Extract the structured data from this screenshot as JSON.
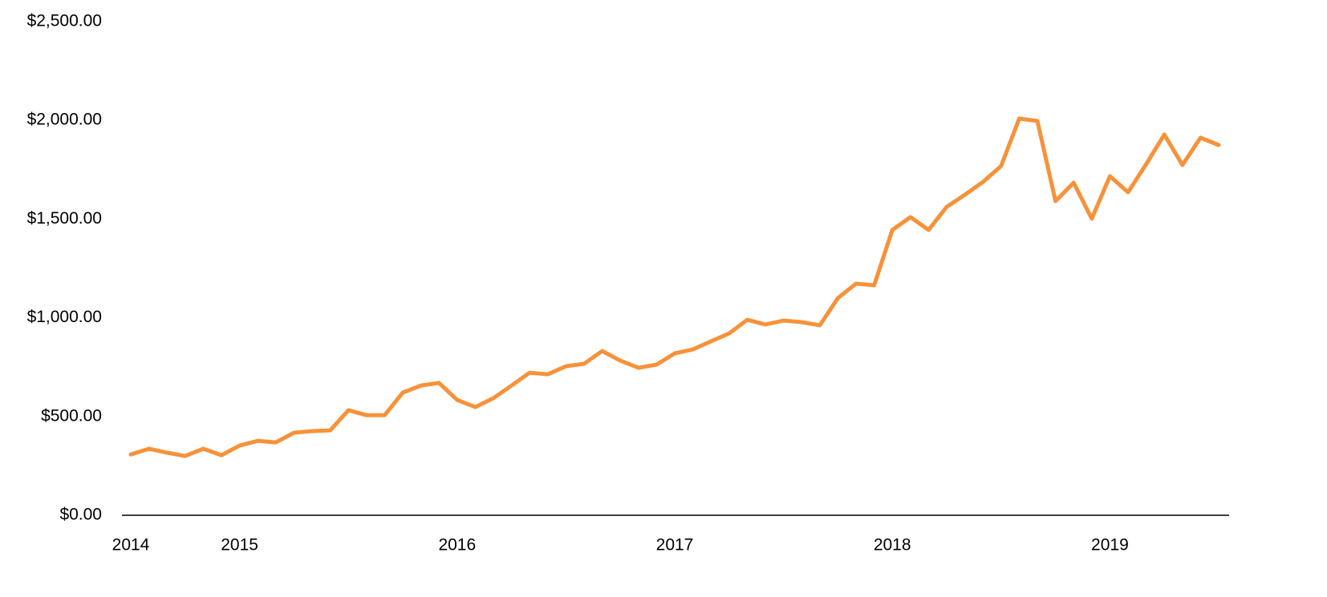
{
  "chart_data": {
    "type": "line",
    "categories": [
      "2014",
      null,
      null,
      null,
      null,
      null,
      "2015",
      null,
      null,
      null,
      null,
      null,
      null,
      null,
      null,
      null,
      null,
      null,
      "2016",
      null,
      null,
      null,
      null,
      null,
      null,
      null,
      null,
      null,
      null,
      null,
      "2017",
      null,
      null,
      null,
      null,
      null,
      null,
      null,
      null,
      null,
      null,
      null,
      "2018",
      null,
      null,
      null,
      null,
      null,
      null,
      null,
      null,
      null,
      null,
      null,
      "2019",
      null,
      null,
      null,
      null,
      null,
      null
    ],
    "series": [
      {
        "color": "#f7923a",
        "values": [
          308,
          337,
          317,
          300,
          337,
          304,
          353,
          377,
          369,
          418,
          426,
          430,
          532,
          507,
          507,
          621,
          657,
          670,
          584,
          548,
          593,
          657,
          722,
          714,
          755,
          767,
          832,
          783,
          747,
          763,
          820,
          840,
          881,
          921,
          990,
          966,
          986,
          978,
          962,
          1100,
          1173,
          1165,
          1445,
          1510,
          1445,
          1562,
          1623,
          1688,
          1769,
          2009,
          1997,
          1591,
          1684,
          1502,
          1717,
          1636,
          1778,
          1928,
          1774,
          1912,
          1875
        ]
      }
    ],
    "ylim": [
      0,
      2500
    ],
    "yticks": [
      {
        "value": 0,
        "label": "$0.00"
      },
      {
        "value": 500,
        "label": "$500.00"
      },
      {
        "value": 1000,
        "label": "$1,000.00"
      },
      {
        "value": 1500,
        "label": "$1,500.00"
      },
      {
        "value": 2000,
        "label": "$2,000.00"
      },
      {
        "value": 2500,
        "label": "$2,500.00"
      }
    ],
    "grid": false
  }
}
